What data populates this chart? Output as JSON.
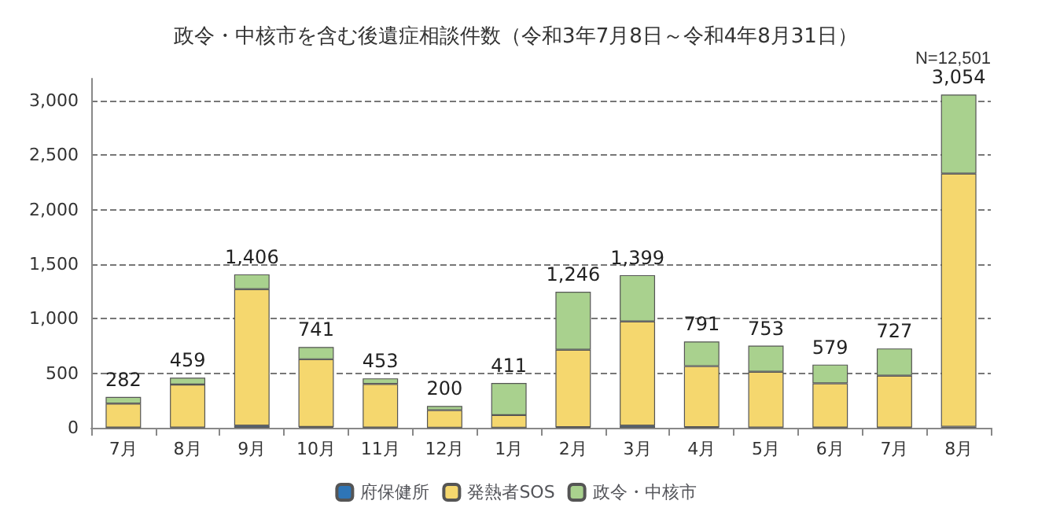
{
  "chart_data": {
    "type": "bar",
    "title": "政令・中核市を含む後遺症相談件数（令和3年7月8日～令和4年8月31日）",
    "annotations": [
      "N=12,501"
    ],
    "categories": [
      "7月",
      "8月",
      "9月",
      "10月",
      "11月",
      "12月",
      "1月",
      "2月",
      "3月",
      "4月",
      "5月",
      "6月",
      "7月",
      "8月"
    ],
    "stacked": true,
    "series": [
      {
        "name": "府保健所",
        "color": "#2e75b6",
        "values": [
          2,
          3,
          20,
          8,
          2,
          1,
          1,
          5,
          20,
          5,
          3,
          2,
          3,
          10
        ]
      },
      {
        "name": "発熱者SOS",
        "color": "#f5d76e",
        "values": [
          220,
          393,
          1250,
          620,
          400,
          160,
          115,
          710,
          955,
          560,
          510,
          405,
          475,
          2320
        ]
      },
      {
        "name": "政令・中核市",
        "color": "#a9d18e",
        "values": [
          60,
          63,
          136,
          113,
          51,
          39,
          295,
          531,
          424,
          226,
          240,
          172,
          249,
          724
        ]
      }
    ],
    "totals": [
      "282",
      "459",
      "1,406",
      "741",
      "453",
      "200",
      "411",
      "1,246",
      "1,399",
      "791",
      "753",
      "579",
      "727",
      "3,054"
    ],
    "ylim": [
      0,
      3200
    ],
    "yticks": [
      0,
      {
        "value": 500,
        "label": "500"
      },
      {
        "value": 1000,
        "label": "1,000"
      },
      {
        "value": 1500,
        "label": "1,500"
      },
      {
        "value": 2000,
        "label": "2,000"
      },
      {
        "value": 2500,
        "label": "2,500"
      },
      {
        "value": 3000,
        "label": "3,000"
      }
    ],
    "grid": "y",
    "legend": "bottom"
  }
}
